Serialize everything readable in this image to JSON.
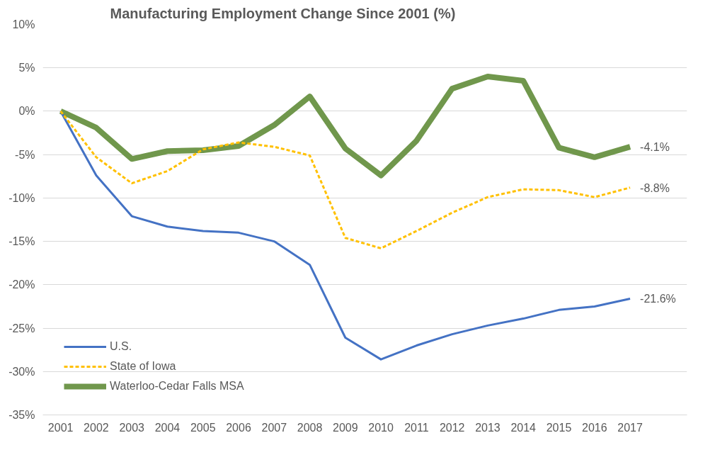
{
  "chart_data": {
    "type": "line",
    "title": "Manufacturing Employment Change Since 2001 (%)",
    "categories": [
      "2001",
      "2002",
      "2003",
      "2004",
      "2005",
      "2006",
      "2007",
      "2008",
      "2009",
      "2010",
      "2011",
      "2012",
      "2013",
      "2014",
      "2015",
      "2016",
      "2017"
    ],
    "series": [
      {
        "name": "U.S.",
        "color": "#4472c4",
        "line_style": "solid",
        "values": [
          0,
          -7.4,
          -12.1,
          -13.3,
          -13.8,
          -14.0,
          -15.0,
          -17.7,
          -26.1,
          -28.6,
          -27.0,
          -25.7,
          -24.7,
          -23.9,
          -22.9,
          -22.5,
          -21.6
        ],
        "value_labels": [
          null,
          null,
          null,
          null,
          null,
          null,
          null,
          null,
          null,
          null,
          null,
          null,
          null,
          null,
          null,
          null,
          "-21.6%"
        ]
      },
      {
        "name": "State of Iowa",
        "color": "#ffc000",
        "line_style": "dashed",
        "values": [
          0,
          -5.3,
          -8.3,
          -6.9,
          -4.4,
          -3.6,
          -4.1,
          -5.1,
          -14.6,
          -15.8,
          -13.8,
          -11.7,
          -9.9,
          -9.0,
          -9.1,
          -9.9,
          -8.8
        ],
        "value_labels": [
          null,
          null,
          null,
          null,
          null,
          null,
          null,
          null,
          null,
          null,
          null,
          null,
          null,
          null,
          null,
          null,
          "-8.8%"
        ]
      },
      {
        "name": "Waterloo-Cedar Falls MSA",
        "color": "#70974c",
        "line_style": "solid",
        "values": [
          0,
          -1.9,
          -5.5,
          -4.6,
          -4.5,
          -4.0,
          -1.6,
          1.7,
          -4.3,
          -7.4,
          -3.4,
          2.6,
          4.0,
          3.5,
          -4.2,
          -5.3,
          -4.1
        ],
        "value_labels": [
          null,
          null,
          null,
          null,
          null,
          null,
          null,
          null,
          null,
          null,
          null,
          null,
          null,
          null,
          null,
          null,
          "-4.1%"
        ]
      }
    ],
    "ylim": [
      -35,
      10
    ],
    "yticks": [
      {
        "value": -35,
        "label": "-35%"
      },
      {
        "value": -30,
        "label": "-30%"
      },
      {
        "value": -25,
        "label": "-25%"
      },
      {
        "value": -20,
        "label": "-20%"
      },
      {
        "value": -15,
        "label": "-15%"
      },
      {
        "value": -10,
        "label": "-10%"
      },
      {
        "value": -5,
        "label": "-5%"
      },
      {
        "value": 0,
        "label": "0%"
      },
      {
        "value": 5,
        "label": "5%"
      },
      {
        "value": 10,
        "label": "10%"
      }
    ],
    "grid": "y",
    "legend": "bottom left",
    "marker": "none"
  }
}
